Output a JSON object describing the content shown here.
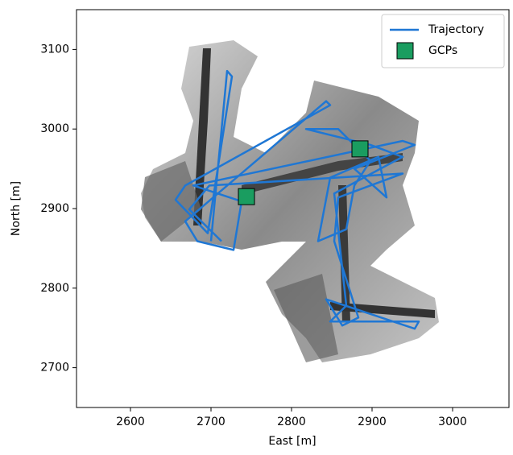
{
  "chart_data": {
    "type": "line",
    "xlabel": "East [m]",
    "ylabel": "North [m]",
    "xlim": [
      2533,
      3070
    ],
    "ylim": [
      2650,
      3150
    ],
    "xticks": [
      2600,
      2700,
      2800,
      2900,
      3000
    ],
    "yticks": [
      2700,
      2800,
      2900,
      3000,
      3100
    ],
    "legend": "upper right",
    "series": [
      {
        "name": "Trajectory",
        "type": "line",
        "color": "#1f77d4",
        "x": [
          2700,
          2720,
          2726,
          2696,
          2656,
          2668,
          2848,
          2843,
          2668,
          2683,
          2728,
          2738,
          2678,
          2938,
          2953,
          2878,
          2918,
          2908,
          2848,
          2833,
          2868,
          2878,
          2898,
          2858,
          2818,
          2898,
          2938,
          2853,
          2868,
          2848,
          2958,
          2953,
          2843,
          2863,
          2883,
          2853,
          2858,
          2938,
          2698,
          2673,
          2713
        ],
        "y": [
          2859,
          3073,
          3066,
          2869,
          2911,
          2929,
          3030,
          3035,
          2884,
          2859,
          2848,
          2909,
          2929,
          2985,
          2980,
          2950,
          2914,
          2965,
          2939,
          2859,
          2874,
          2929,
          2960,
          3000,
          3000,
          2980,
          2965,
          2919,
          2778,
          2758,
          2758,
          2749,
          2786,
          2753,
          2763,
          2859,
          2914,
          2944,
          2929,
          2899,
          2859
        ]
      },
      {
        "name": "GCPs",
        "type": "scatter",
        "color": "#1a9d60",
        "marker": "square",
        "x": [
          2744,
          2885
        ],
        "y": [
          2915,
          2975
        ]
      }
    ]
  }
}
